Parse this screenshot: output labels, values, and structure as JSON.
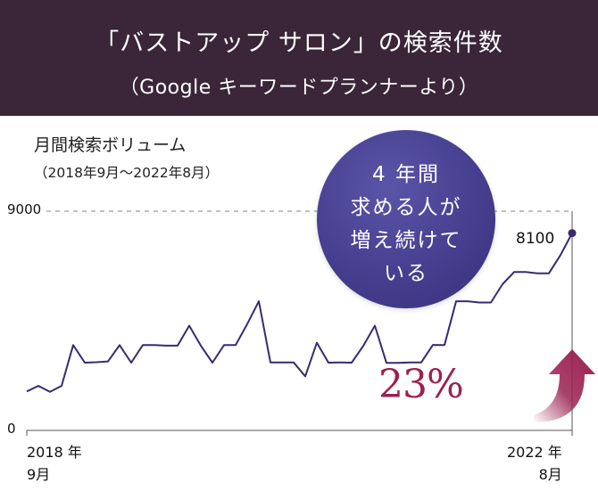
{
  "header": {
    "title": "「バストアップ サロン」の検索件数",
    "subtitle": "（Google キーワードプランナーより）"
  },
  "chart_data": {
    "type": "line",
    "title": "月間検索ボリューム",
    "subtitle": "（2018年9月〜2022年8月）",
    "ylim": [
      0,
      9000
    ],
    "y_ticks": [
      "9000",
      "0"
    ],
    "x_start_label": [
      "2018 年",
      "9月"
    ],
    "x_end_label": [
      "2022 年",
      "8月"
    ],
    "grid_line": 9000,
    "series": [
      {
        "name": "月間検索ボリューム",
        "values": [
          1600,
          1830,
          1580,
          1830,
          3500,
          2780,
          2800,
          2830,
          3500,
          2780,
          3500,
          3500,
          3480,
          3480,
          4300,
          3480,
          2780,
          3500,
          3500,
          4370,
          5300,
          2790,
          2790,
          2790,
          2220,
          3600,
          2780,
          2790,
          2780,
          3470,
          4300,
          2770,
          2770,
          2790,
          2790,
          3510,
          3500,
          5300,
          5300,
          5250,
          5250,
          6000,
          6500,
          6500,
          6450,
          6450,
          7200,
          8100
        ]
      }
    ],
    "end_value_label": "8100",
    "annotation": [
      "4 年間",
      "求める人が",
      "増え続けて",
      "いる"
    ],
    "growth_label": "23%",
    "colors": {
      "line": "#3a2a6e",
      "accent": "#9a2150",
      "bubble": "#463f8f"
    }
  }
}
